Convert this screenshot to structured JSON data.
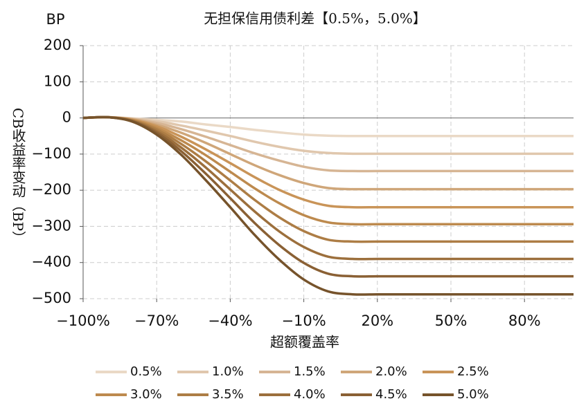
{
  "chart_data": {
    "type": "line",
    "title": "无担保信用债利差【0.5%，5.0%】",
    "y_unit": "BP",
    "x_label": "超额覆盖率",
    "y_label": "CB收益率变动（BP）",
    "x": [
      -100,
      -90,
      -80,
      -70,
      -60,
      -50,
      -40,
      -30,
      -20,
      -10,
      0,
      10,
      20,
      30,
      40,
      50,
      60,
      70,
      80,
      90,
      100
    ],
    "series": [
      {
        "name": "0.5%",
        "color": "#ead9c6",
        "values": [
          0,
          2,
          -1,
          -5,
          -10,
          -18,
          -25,
          -33,
          -40,
          -46,
          -49,
          -50,
          -50,
          -50,
          -50,
          -50,
          -50,
          -50,
          -50,
          -50,
          -50
        ]
      },
      {
        "name": "1.0%",
        "color": "#e0c7ad",
        "values": [
          0,
          2,
          -2,
          -9,
          -21,
          -35,
          -50,
          -66,
          -80,
          -91,
          -97,
          -99,
          -99,
          -99,
          -99,
          -99,
          -99,
          -99,
          -99,
          -99,
          -99
        ]
      },
      {
        "name": "1.5%",
        "color": "#d6b594",
        "values": [
          0,
          2,
          -3,
          -14,
          -31,
          -52,
          -75,
          -98,
          -118,
          -135,
          -145,
          -147,
          -147,
          -147,
          -147,
          -147,
          -147,
          -147,
          -147,
          -147,
          -147
        ]
      },
      {
        "name": "2.0%",
        "color": "#cfa679",
        "values": [
          0,
          2,
          -4,
          -19,
          -41,
          -69,
          -100,
          -131,
          -158,
          -180,
          -194,
          -197,
          -197,
          -197,
          -197,
          -197,
          -197,
          -197,
          -197,
          -197,
          -197
        ]
      },
      {
        "name": "2.5%",
        "color": "#c99458",
        "values": [
          0,
          2,
          -5,
          -23,
          -52,
          -87,
          -125,
          -164,
          -199,
          -226,
          -243,
          -247,
          -247,
          -247,
          -247,
          -247,
          -247,
          -247,
          -247,
          -247,
          -247
        ]
      },
      {
        "name": "3.0%",
        "color": "#bd8a4e",
        "values": [
          0,
          2,
          -6,
          -28,
          -62,
          -103,
          -149,
          -195,
          -236,
          -269,
          -289,
          -294,
          -294,
          -294,
          -294,
          -294,
          -294,
          -294,
          -294,
          -294,
          -294
        ]
      },
      {
        "name": "3.5%",
        "color": "#ad7d45",
        "values": [
          0,
          2,
          -7,
          -32,
          -72,
          -120,
          -173,
          -227,
          -275,
          -313,
          -337,
          -342,
          -342,
          -342,
          -342,
          -342,
          -342,
          -342,
          -342,
          -342,
          -342
        ]
      },
      {
        "name": "4.0%",
        "color": "#9c6f3c",
        "values": [
          0,
          2,
          -8,
          -37,
          -82,
          -137,
          -198,
          -259,
          -314,
          -357,
          -384,
          -390,
          -390,
          -390,
          -390,
          -390,
          -390,
          -390,
          -390,
          -390,
          -390
        ]
      },
      {
        "name": "4.5%",
        "color": "#8a6034",
        "values": [
          0,
          2,
          -9,
          -41,
          -92,
          -154,
          -222,
          -291,
          -352,
          -401,
          -431,
          -438,
          -438,
          -438,
          -438,
          -438,
          -438,
          -438,
          -438,
          -438,
          -438
        ]
      },
      {
        "name": "5.0%",
        "color": "#76532b",
        "values": [
          0,
          2,
          -10,
          -46,
          -102,
          -172,
          -247,
          -324,
          -392,
          -447,
          -480,
          -488,
          -488,
          -488,
          -488,
          -488,
          -488,
          -488,
          -488,
          -488,
          -488
        ]
      }
    ],
    "xlim": [
      -100,
      100
    ],
    "xticks": [
      {
        "value": -100,
        "label": "−100%"
      },
      {
        "value": -70,
        "label": "−70%"
      },
      {
        "value": -40,
        "label": "−40%"
      },
      {
        "value": -10,
        "label": "−10%"
      },
      {
        "value": 20,
        "label": "20%"
      },
      {
        "value": 50,
        "label": "50%"
      },
      {
        "value": 80,
        "label": "80%"
      }
    ],
    "ylim": [
      -500,
      200
    ],
    "yticks": [
      {
        "value": -500,
        "label": "−500"
      },
      {
        "value": -400,
        "label": "−400"
      },
      {
        "value": -300,
        "label": "−300"
      },
      {
        "value": -200,
        "label": "−200"
      },
      {
        "value": -100,
        "label": "−100"
      },
      0,
      100,
      200
    ],
    "grid": true
  }
}
